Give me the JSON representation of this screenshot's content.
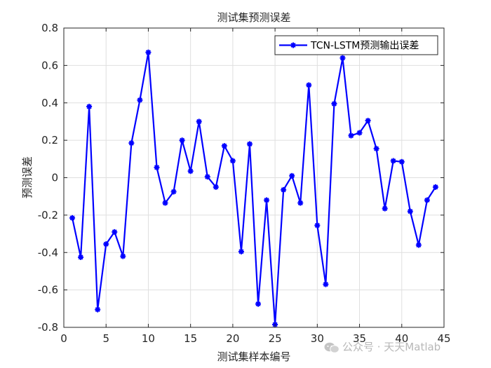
{
  "chart_data": {
    "type": "line",
    "title": "测试集预测误差",
    "xlabel": "测试集样本编号",
    "ylabel": "预测误差",
    "xlim": [
      0,
      45
    ],
    "ylim": [
      -0.8,
      0.8
    ],
    "xticks": [
      "0",
      "5",
      "10",
      "15",
      "20",
      "25",
      "30",
      "35",
      "40",
      "45"
    ],
    "xtick_values": [
      0,
      5,
      10,
      15,
      20,
      25,
      30,
      35,
      40,
      45
    ],
    "yticks": [
      "0.8",
      "0.6",
      "0.4",
      "0.2",
      "0",
      "-0.2",
      "-0.4",
      "-0.6",
      "-0.8"
    ],
    "ytick_values": [
      0.8,
      0.6,
      0.4,
      0.2,
      0,
      -0.2,
      -0.4,
      -0.6,
      -0.8
    ],
    "grid": true,
    "legend_position": "top-right",
    "series": [
      {
        "name": "TCN-LSTM预测输出误差",
        "color": "#0000ff",
        "marker": "asterisk",
        "x": [
          1,
          2,
          3,
          4,
          5,
          6,
          7,
          8,
          9,
          10,
          11,
          12,
          13,
          14,
          15,
          16,
          17,
          18,
          19,
          20,
          21,
          22,
          23,
          24,
          25,
          26,
          27,
          28,
          29,
          30,
          31,
          32,
          33,
          34,
          35,
          36,
          37,
          38,
          39,
          40,
          41,
          42,
          43,
          44
        ],
        "values": [
          -0.215,
          -0.425,
          0.38,
          -0.705,
          -0.355,
          -0.29,
          -0.42,
          0.185,
          0.415,
          0.67,
          0.055,
          -0.135,
          -0.075,
          0.2,
          0.035,
          0.3,
          0.005,
          -0.05,
          0.17,
          0.09,
          -0.395,
          0.18,
          -0.675,
          -0.12,
          -0.785,
          -0.065,
          0.01,
          -0.135,
          0.495,
          -0.255,
          -0.57,
          0.395,
          0.64,
          0.225,
          0.24,
          0.305,
          0.155,
          -0.165,
          0.09,
          0.085,
          -0.18,
          -0.36,
          -0.12,
          -0.05
        ]
      }
    ]
  },
  "watermark": {
    "text": "公众号 · 天天Matlab"
  }
}
